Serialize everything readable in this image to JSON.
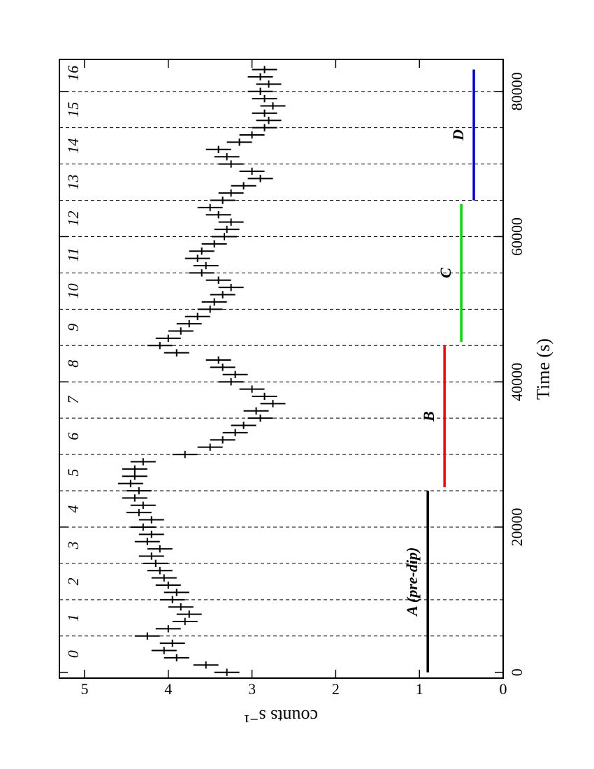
{
  "chart_data": {
    "type": "errorbar",
    "xlabel": "Time  (s)",
    "ylabel": "counts s⁻¹",
    "xlim": [
      -800,
      84400
    ],
    "ylim": [
      0,
      5.3
    ],
    "xticks": [
      0,
      20000,
      40000,
      60000,
      80000
    ],
    "yticks": [
      0,
      1,
      2,
      3,
      4,
      5
    ],
    "rotated": true,
    "series": [
      {
        "color": "#000000",
        "error": 0.15,
        "x": [
          0,
          1000,
          2000,
          3000,
          4000,
          5000,
          6000,
          7000,
          8000,
          9000,
          10000,
          11000,
          12000,
          13000,
          14000,
          15000,
          16000,
          17000,
          18000,
          19000,
          20000,
          21000,
          22000,
          23000,
          24000,
          25000,
          26000,
          27000,
          28000,
          29000,
          30000,
          31000,
          32000,
          33000,
          34000,
          35000,
          36000,
          37000,
          38000,
          39000,
          40000,
          41000,
          42000,
          43000,
          44000,
          45000,
          46000,
          47000,
          48000,
          49000,
          50000,
          51000,
          52000,
          53000,
          54000,
          55000,
          56000,
          57000,
          58000,
          59000,
          60000,
          61000,
          62000,
          63000,
          64000,
          65000,
          66000,
          67000,
          68000,
          69000,
          70000,
          71000,
          72000,
          73000,
          74000,
          75000,
          76000,
          77000,
          78000,
          79000,
          80000,
          81000,
          82000,
          83000
        ],
        "values": [
          3.3,
          3.55,
          3.9,
          4.05,
          3.95,
          4.25,
          4.0,
          3.8,
          3.75,
          3.85,
          3.95,
          3.9,
          4.0,
          4.05,
          4.1,
          4.15,
          4.2,
          4.1,
          4.25,
          4.2,
          4.3,
          4.2,
          4.35,
          4.3,
          4.4,
          4.35,
          4.45,
          4.4,
          4.4,
          4.3,
          3.8,
          3.5,
          3.35,
          3.2,
          3.1,
          2.9,
          2.95,
          2.75,
          2.85,
          3.0,
          3.25,
          3.2,
          3.35,
          3.4,
          3.9,
          4.1,
          4.0,
          3.85,
          3.75,
          3.65,
          3.5,
          3.45,
          3.35,
          3.25,
          3.4,
          3.6,
          3.55,
          3.65,
          3.6,
          3.45,
          3.33,
          3.3,
          3.25,
          3.4,
          3.5,
          3.35,
          3.25,
          3.1,
          2.9,
          3.0,
          3.25,
          3.3,
          3.4,
          3.15,
          3.0,
          2.85,
          2.8,
          2.85,
          2.75,
          2.85,
          2.9,
          2.8,
          2.9,
          2.85
        ]
      }
    ],
    "phase_lines": [
      5000,
      10000,
      15000,
      20000,
      25000,
      30000,
      35000,
      40000,
      45000,
      50000,
      55000,
      60000,
      65000,
      70000,
      75000,
      80000
    ],
    "phase_labels": [
      "0",
      "1",
      "2",
      "3",
      "4",
      "5",
      "6",
      "7",
      "8",
      "9",
      "10",
      "11",
      "12",
      "13",
      "14",
      "15",
      "16"
    ],
    "segments": [
      {
        "name": "A (pre-dip)",
        "color": "#000000",
        "start": 0,
        "end": 25000,
        "level": 0.9
      },
      {
        "name": "B",
        "color": "#ff0000",
        "start": 25500,
        "end": 45000,
        "level": 0.7
      },
      {
        "name": "C",
        "color": "#00dd00",
        "start": 45500,
        "end": 64500,
        "level": 0.5
      },
      {
        "name": "D",
        "color": "#0000dd",
        "start": 65000,
        "end": 83000,
        "level": 0.35
      }
    ]
  }
}
